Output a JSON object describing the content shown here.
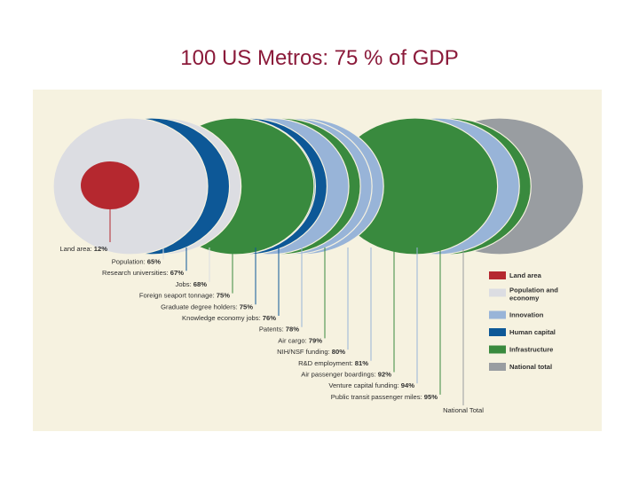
{
  "slide_title": "100 US Metros: 75 % of GDP",
  "colors": {
    "land_area": "#b5282f",
    "population_economy": "#dcdde2",
    "innovation": "#98b4d8",
    "human_capital": "#0d5897",
    "infrastructure": "#398a3e",
    "national_total": "#999da1",
    "panel_bg": "#f6f2e0"
  },
  "chart_data": {
    "type": "nested-share-ellipses",
    "title": "100 US Metros: 75 % of GDP",
    "unit": "%",
    "indicators": [
      {
        "name": "Land area:",
        "value": 12,
        "label": "12%",
        "category": "land_area"
      },
      {
        "name": "Population:",
        "value": 65,
        "label": "65%",
        "category": "population_economy"
      },
      {
        "name": "Research universities:",
        "value": 67,
        "label": "67%",
        "category": "human_capital"
      },
      {
        "name": "Jobs:",
        "value": 68,
        "label": "68%",
        "category": "population_economy"
      },
      {
        "name": "Foreign seaport  tonnage:",
        "value": 75,
        "label": "75%",
        "category": "infrastructure"
      },
      {
        "name": "Graduate degree holders:",
        "value": 75,
        "label": "75%",
        "category": "human_capital"
      },
      {
        "name": "Knowledge economy jobs:",
        "value": 76,
        "label": "76%",
        "category": "human_capital"
      },
      {
        "name": "Patents:",
        "value": 78,
        "label": "78%",
        "category": "innovation"
      },
      {
        "name": "Air cargo:",
        "value": 79,
        "label": "79%",
        "category": "infrastructure"
      },
      {
        "name": "NIH/NSF funding:",
        "value": 80,
        "label": "80%",
        "category": "innovation"
      },
      {
        "name": "R&D employment:",
        "value": 81,
        "label": "81%",
        "category": "innovation"
      },
      {
        "name": "Air passenger boardings:",
        "value": 92,
        "label": "92%",
        "category": "infrastructure"
      },
      {
        "name": "Venture capital funding:",
        "value": 94,
        "label": "94%",
        "category": "innovation"
      },
      {
        "name": "Public transit passenger miles:",
        "value": 95,
        "label": "95%",
        "category": "infrastructure"
      },
      {
        "name": "National Total",
        "value": 100,
        "label": "",
        "category": "national_total"
      }
    ],
    "legend": [
      {
        "label": "Land area",
        "category": "land_area"
      },
      {
        "label": "Population and economy",
        "category": "population_economy"
      },
      {
        "label": "Innovation",
        "category": "innovation"
      },
      {
        "label": "Human capital",
        "category": "human_capital"
      },
      {
        "label": "Infrastructure",
        "category": "infrastructure"
      },
      {
        "label": "National total",
        "category": "national_total"
      }
    ],
    "legend_position": "right"
  }
}
